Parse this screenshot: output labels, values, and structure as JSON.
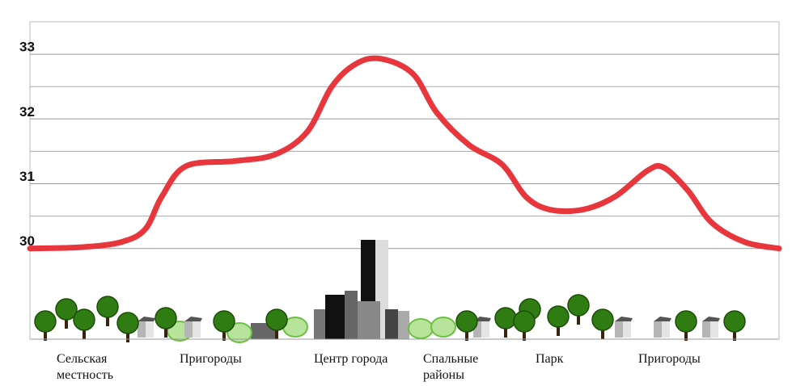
{
  "chart_data": {
    "type": "line",
    "color": "#e8363d",
    "x": [
      0,
      6.8,
      12.2,
      15.4,
      17.6,
      20.8,
      27.3,
      32.7,
      37,
      40.3,
      43.5,
      46.8,
      51.1,
      54.3,
      58.6,
      63,
      66.2,
      69.4,
      73.8,
      78.1,
      82.4,
      84.6,
      87.8,
      91,
      95.4,
      100
    ],
    "values": [
      30.0,
      30.02,
      30.1,
      30.3,
      30.8,
      31.27,
      31.35,
      31.45,
      31.8,
      32.5,
      32.85,
      32.93,
      32.7,
      32.1,
      31.6,
      31.3,
      30.8,
      30.6,
      30.6,
      30.8,
      31.2,
      31.25,
      30.9,
      30.4,
      30.1,
      30.0
    ],
    "xlim": [
      0,
      100
    ],
    "ylim": [
      28.6,
      33.5
    ],
    "yticks": [
      30,
      31,
      32,
      33
    ],
    "grid": true,
    "minor_grid": true,
    "zones": [
      [
        "Сельская",
        "местность"
      ],
      [
        "Пригороды"
      ],
      [
        "Центр города"
      ],
      [
        "Спальные",
        "районы"
      ],
      [
        "Парк"
      ],
      [
        "Пригороды"
      ]
    ]
  }
}
